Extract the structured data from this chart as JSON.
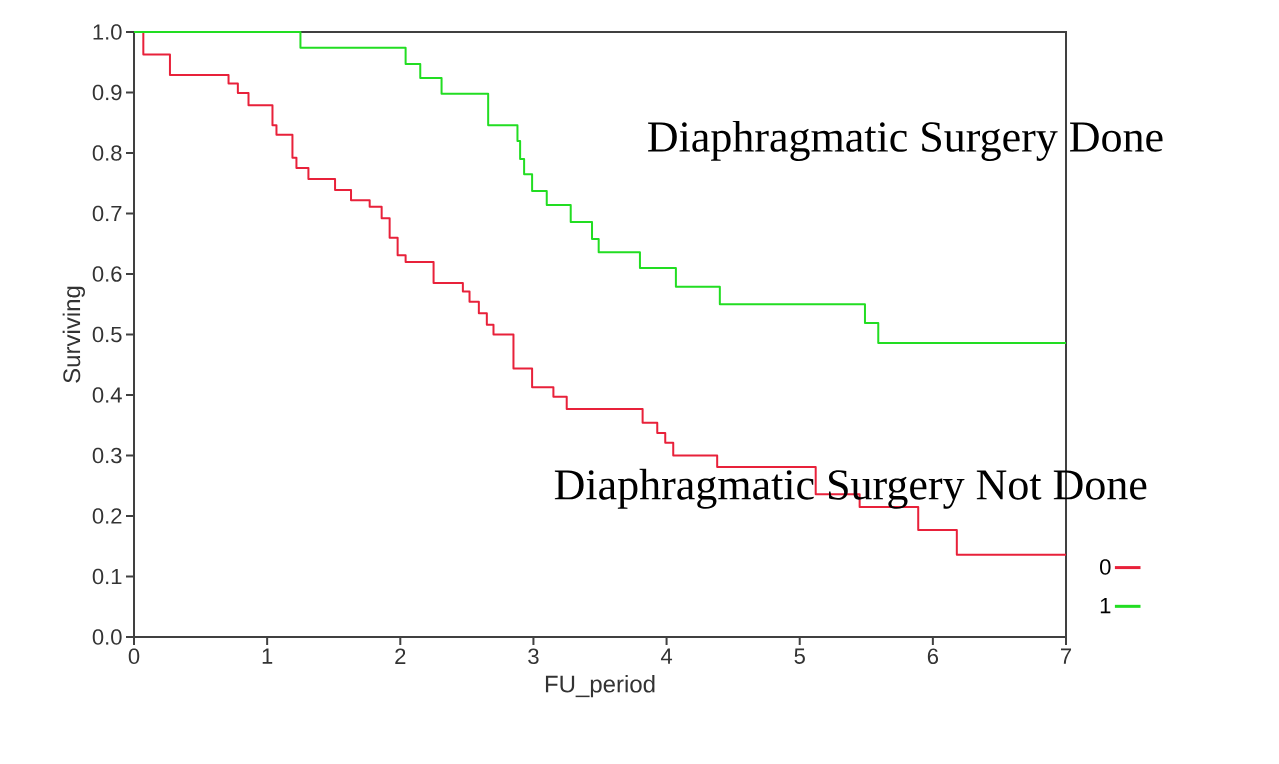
{
  "chart_data": {
    "type": "step",
    "xlabel": "FU_period",
    "ylabel": "Surviving",
    "xlim": [
      0,
      7
    ],
    "ylim": [
      0,
      1
    ],
    "xticks": [
      0,
      1,
      2,
      3,
      4,
      5,
      6,
      7
    ],
    "yticks": [
      {
        "value": 0,
        "label": "0.0"
      },
      0.1,
      0.2,
      0.3,
      0.4,
      0.5,
      0.6,
      0.7,
      0.8,
      0.9,
      {
        "value": 1,
        "label": "1.0"
      }
    ],
    "legend": "bottom right",
    "annotations": [
      "Diaphragmatic Surgery Done",
      "Diaphragmatic Surgery Not Done"
    ],
    "series": [
      {
        "name": "0",
        "color": "#e8213a",
        "x": [
          0,
          0.07,
          0.27,
          0.71,
          0.78,
          0.86,
          1.04,
          1.07,
          1.19,
          1.22,
          1.31,
          1.51,
          1.63,
          1.77,
          1.86,
          1.92,
          1.98,
          2.04,
          2.25,
          2.47,
          2.52,
          2.59,
          2.65,
          2.7,
          2.85,
          2.99,
          3.15,
          3.25,
          3.82,
          3.93,
          3.99,
          4.05,
          4.38,
          5.12,
          5.45,
          5.89,
          6.18,
          7
        ],
        "values": [
          1.0,
          0.963,
          0.929,
          0.915,
          0.899,
          0.879,
          0.846,
          0.83,
          0.792,
          0.775,
          0.757,
          0.739,
          0.722,
          0.711,
          0.692,
          0.66,
          0.631,
          0.62,
          0.585,
          0.571,
          0.554,
          0.535,
          0.516,
          0.5,
          0.444,
          0.413,
          0.397,
          0.377,
          0.354,
          0.337,
          0.321,
          0.3,
          0.281,
          0.236,
          0.215,
          0.177,
          0.136,
          0.136
        ]
      },
      {
        "name": "1",
        "color": "#22dd22",
        "x": [
          0,
          1.25,
          2.04,
          2.15,
          2.31,
          2.66,
          2.88,
          2.9,
          2.93,
          2.99,
          3.1,
          3.28,
          3.44,
          3.49,
          3.8,
          4.07,
          4.4,
          5.49,
          5.59,
          7
        ],
        "values": [
          1.0,
          0.974,
          0.947,
          0.924,
          0.898,
          0.846,
          0.82,
          0.79,
          0.765,
          0.737,
          0.714,
          0.686,
          0.658,
          0.636,
          0.61,
          0.579,
          0.55,
          0.519,
          0.486,
          0.486
        ]
      }
    ]
  }
}
